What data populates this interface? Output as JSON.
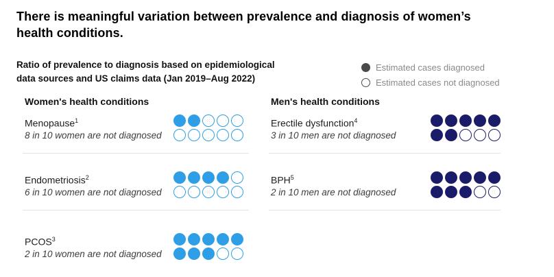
{
  "title": "There is meaningful variation between prevalence and diagnosis of women’s\nhealth conditions.",
  "subtitle": "Ratio of prevalence to diagnosis based on epidemiological\ndata sources and US claims data (Jan 2019–Aug 2022)",
  "legend": {
    "diagnosed_label": "Estimated cases diagnosed",
    "not_diagnosed_label": "Estimated cases not diagnosed"
  },
  "colors": {
    "women_accent": "#2e9ee6",
    "men_accent": "#1b1c69",
    "legend_dot": "#4a4a4a",
    "legend_text": "#8a8a8a",
    "divider": "#e3e3e3"
  },
  "columns": [
    {
      "header": "Women's health conditions",
      "accent": "#2e9ee6",
      "rows": [
        {
          "name": "Menopause",
          "footnote": "1",
          "note": "8 in 10 women are not diagnosed",
          "diagnosed": 2,
          "total": 10
        },
        {
          "name": "Endometriosis",
          "footnote": "2",
          "note": "6 in 10 women are not diagnosed",
          "diagnosed": 4,
          "total": 10
        },
        {
          "name": "PCOS",
          "footnote": "3",
          "note": "2 in 10 women are not diagnosed",
          "diagnosed": 8,
          "total": 10
        }
      ]
    },
    {
      "header": "Men's health conditions",
      "accent": "#1b1c69",
      "rows": [
        {
          "name": "Erectile dysfunction",
          "footnote": "4",
          "note": "3 in 10 men are not diagnosed",
          "diagnosed": 7,
          "total": 10
        },
        {
          "name": "BPH",
          "footnote": "5",
          "note": "2 in 10 men are not diagnosed",
          "diagnosed": 8,
          "total": 10
        }
      ]
    }
  ],
  "chart_data": {
    "type": "pictogram",
    "title": "There is meaningful variation between prevalence and diagnosis of women’s health conditions.",
    "subtitle": "Ratio of prevalence to diagnosis based on epidemiological data sources and US claims data (Jan 2019–Aug 2022)",
    "legend": [
      "Estimated cases diagnosed",
      "Estimated cases not diagnosed"
    ],
    "units_per_condition": 10,
    "groups": [
      {
        "group": "Women's health conditions",
        "color": "#2e9ee6",
        "items": [
          {
            "condition": "Menopause",
            "footnote": 1,
            "diagnosed_per_10": 2,
            "not_diagnosed_per_10": 8,
            "annotation": "8 in 10 women are not diagnosed"
          },
          {
            "condition": "Endometriosis",
            "footnote": 2,
            "diagnosed_per_10": 4,
            "not_diagnosed_per_10": 6,
            "annotation": "6 in 10 women are not diagnosed"
          },
          {
            "condition": "PCOS",
            "footnote": 3,
            "diagnosed_per_10": 8,
            "not_diagnosed_per_10": 2,
            "annotation": "2 in 10 women are not diagnosed"
          }
        ]
      },
      {
        "group": "Men's health conditions",
        "color": "#1b1c69",
        "items": [
          {
            "condition": "Erectile dysfunction",
            "footnote": 4,
            "diagnosed_per_10": 7,
            "not_diagnosed_per_10": 3,
            "annotation": "3 in 10 men are not diagnosed"
          },
          {
            "condition": "BPH",
            "footnote": 5,
            "diagnosed_per_10": 8,
            "not_diagnosed_per_10": 2,
            "annotation": "2 in 10 men are not diagnosed"
          }
        ]
      }
    ]
  }
}
